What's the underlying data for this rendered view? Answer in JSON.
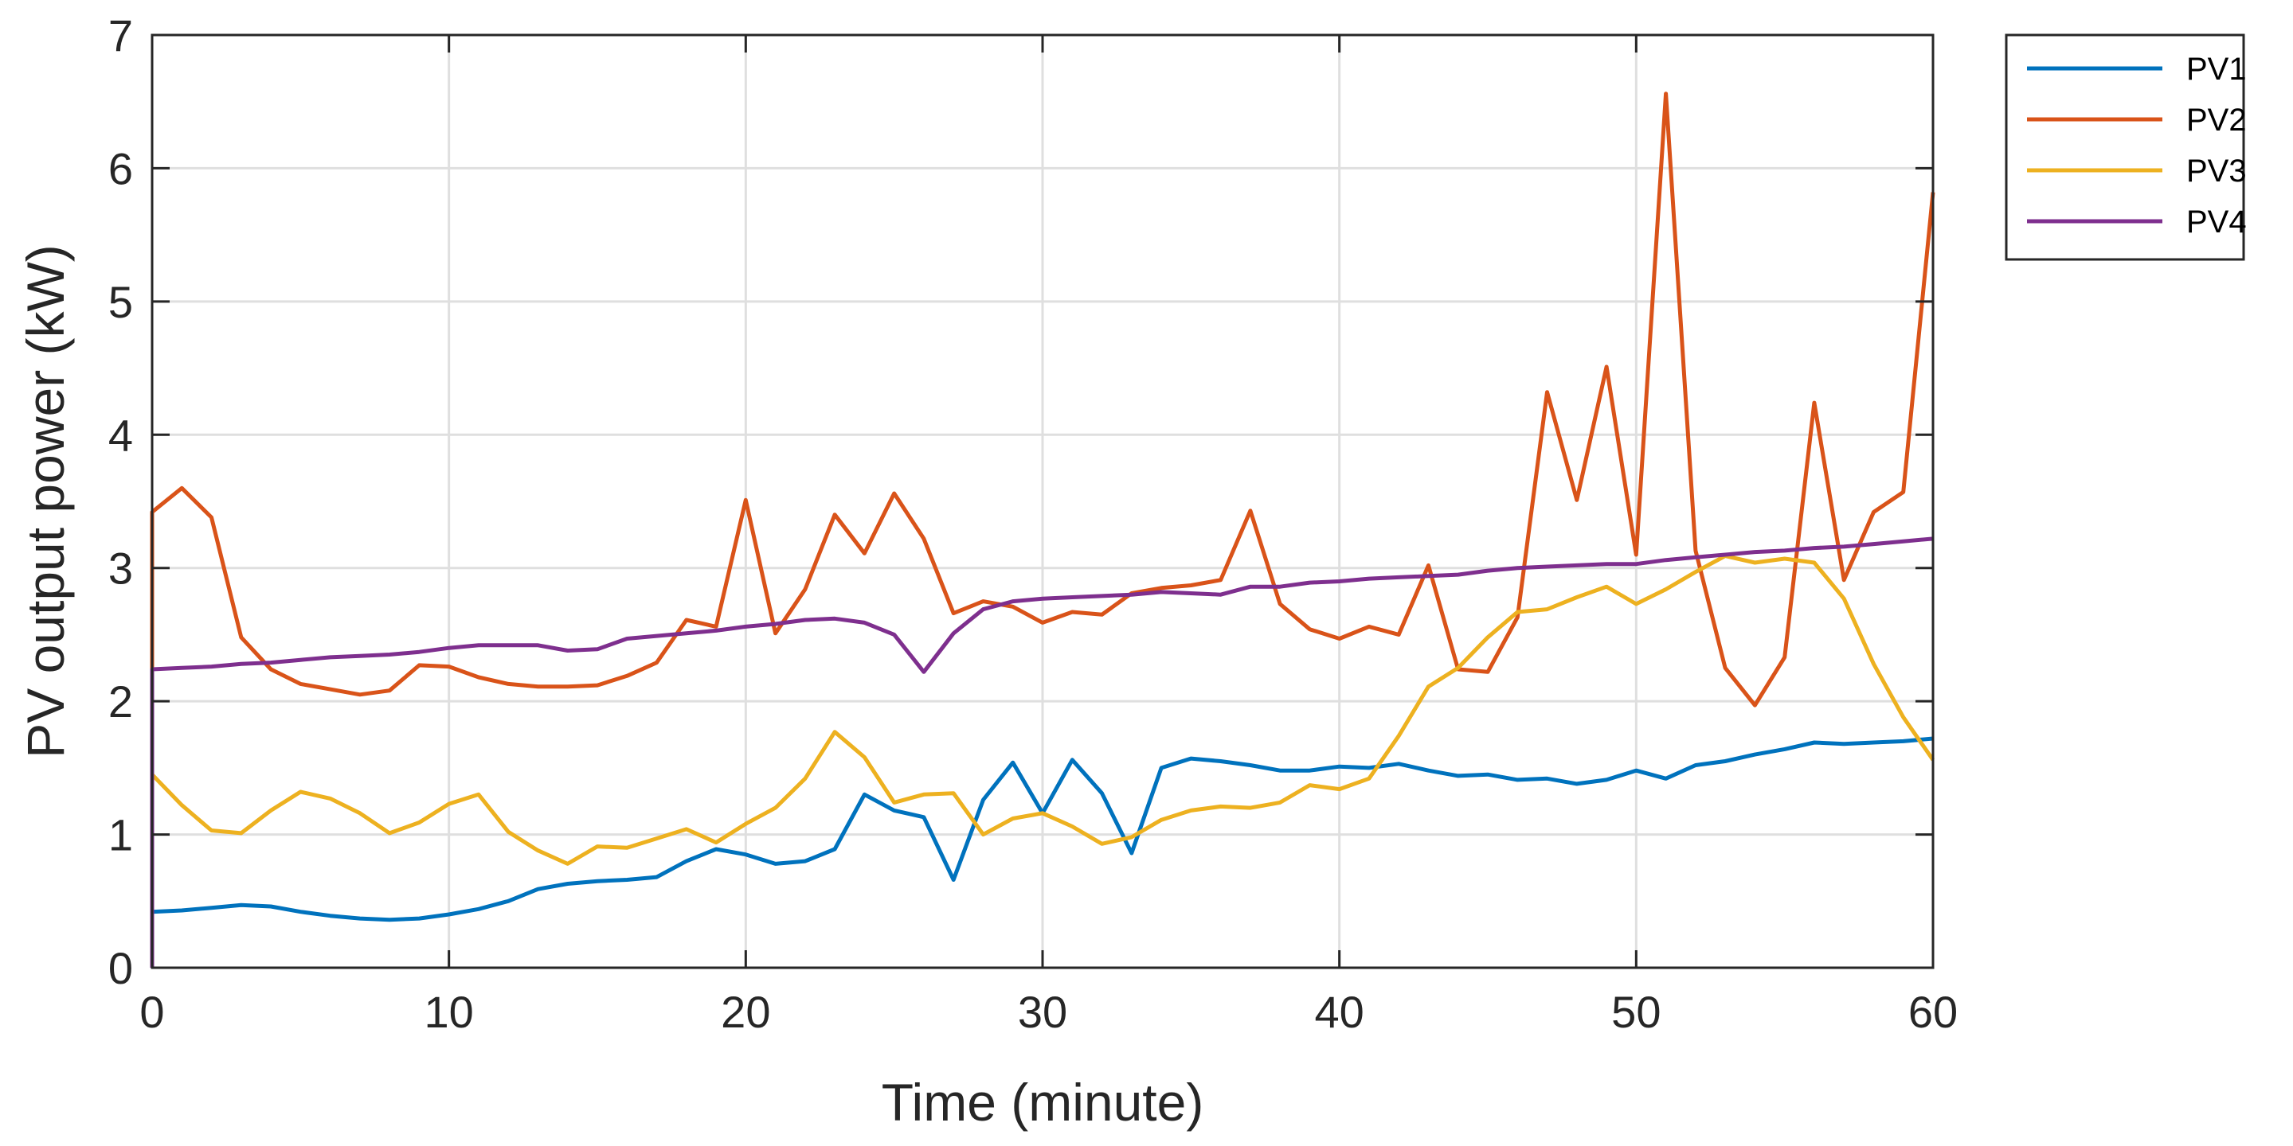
{
  "chart_data": {
    "type": "line",
    "title": "",
    "xlabel": "Time (minute)",
    "ylabel": "PV output power (kW)",
    "xlim": [
      0,
      60
    ],
    "ylim": [
      0,
      7
    ],
    "xticks": [
      0,
      10,
      20,
      30,
      40,
      50,
      60
    ],
    "yticks": [
      0,
      1,
      2,
      3,
      4,
      5,
      6,
      7
    ],
    "grid": true,
    "legend_position": "outside-top-right",
    "x": [
      0,
      1,
      2,
      3,
      4,
      5,
      6,
      7,
      8,
      9,
      10,
      11,
      12,
      13,
      14,
      15,
      16,
      17,
      18,
      19,
      20,
      21,
      22,
      23,
      24,
      25,
      26,
      27,
      28,
      29,
      30,
      31,
      32,
      33,
      34,
      35,
      36,
      37,
      38,
      39,
      40,
      41,
      42,
      43,
      44,
      45,
      46,
      47,
      48,
      49,
      50,
      51,
      52,
      53,
      54,
      55,
      56,
      57,
      58,
      59,
      60
    ],
    "series": [
      {
        "name": "PV1",
        "color": "#0072BD",
        "values": [
          0.42,
          0.43,
          0.45,
          0.47,
          0.46,
          0.42,
          0.39,
          0.37,
          0.36,
          0.37,
          0.4,
          0.44,
          0.5,
          0.59,
          0.63,
          0.65,
          0.66,
          0.68,
          0.8,
          0.89,
          0.85,
          0.78,
          0.8,
          0.89,
          1.3,
          1.18,
          1.13,
          0.66,
          1.26,
          1.54,
          1.16,
          1.56,
          1.31,
          0.86,
          1.5,
          1.57,
          1.55,
          1.52,
          1.48,
          1.48,
          1.51,
          1.5,
          1.53,
          1.48,
          1.44,
          1.45,
          1.41,
          1.42,
          1.38,
          1.41,
          1.48,
          1.42,
          1.52,
          1.55,
          1.6,
          1.64,
          1.69,
          1.68,
          1.69,
          1.7,
          1.72
        ]
      },
      {
        "name": "PV2",
        "color": "#D95319",
        "values": [
          3.42,
          3.6,
          3.38,
          2.48,
          2.24,
          2.13,
          2.09,
          2.05,
          2.08,
          2.27,
          2.26,
          2.18,
          2.13,
          2.11,
          2.11,
          2.12,
          2.19,
          2.29,
          2.61,
          2.56,
          3.51,
          2.51,
          2.84,
          3.4,
          3.11,
          3.56,
          3.22,
          2.66,
          2.75,
          2.71,
          2.59,
          2.67,
          2.65,
          2.81,
          2.85,
          2.87,
          2.91,
          3.43,
          2.73,
          2.54,
          2.47,
          2.56,
          2.5,
          3.02,
          2.24,
          2.22,
          2.63,
          4.32,
          3.51,
          4.51,
          3.1,
          6.56,
          3.13,
          2.25,
          1.97,
          2.33,
          4.24,
          2.91,
          3.42,
          3.57,
          5.82
        ]
      },
      {
        "name": "PV3",
        "color": "#EDB120",
        "values": [
          1.45,
          1.22,
          1.03,
          1.01,
          1.18,
          1.32,
          1.27,
          1.16,
          1.01,
          1.09,
          1.23,
          1.3,
          1.02,
          0.88,
          0.78,
          0.91,
          0.9,
          0.97,
          1.04,
          0.94,
          1.08,
          1.2,
          1.42,
          1.77,
          1.58,
          1.24,
          1.3,
          1.31,
          1.0,
          1.12,
          1.16,
          1.06,
          0.93,
          0.98,
          1.11,
          1.18,
          1.21,
          1.2,
          1.24,
          1.37,
          1.34,
          1.42,
          1.74,
          2.11,
          2.25,
          2.48,
          2.67,
          2.69,
          2.78,
          2.86,
          2.73,
          2.84,
          2.97,
          3.09,
          3.04,
          3.07,
          3.04,
          2.77,
          2.28,
          1.88,
          1.56
        ]
      },
      {
        "name": "PV4",
        "color": "#7E2F8E",
        "values": [
          2.24,
          2.25,
          2.26,
          2.28,
          2.29,
          2.31,
          2.33,
          2.34,
          2.35,
          2.37,
          2.4,
          2.42,
          2.42,
          2.42,
          2.38,
          2.39,
          2.47,
          2.49,
          2.51,
          2.53,
          2.56,
          2.58,
          2.61,
          2.62,
          2.59,
          2.5,
          2.22,
          2.51,
          2.69,
          2.75,
          2.77,
          2.78,
          2.79,
          2.8,
          2.82,
          2.81,
          2.8,
          2.86,
          2.86,
          2.89,
          2.9,
          2.92,
          2.93,
          2.94,
          2.95,
          2.98,
          3.0,
          3.01,
          3.02,
          3.03,
          3.03,
          3.06,
          3.08,
          3.1,
          3.12,
          3.13,
          3.15,
          3.16,
          3.18,
          3.2,
          3.22
        ]
      }
    ]
  }
}
